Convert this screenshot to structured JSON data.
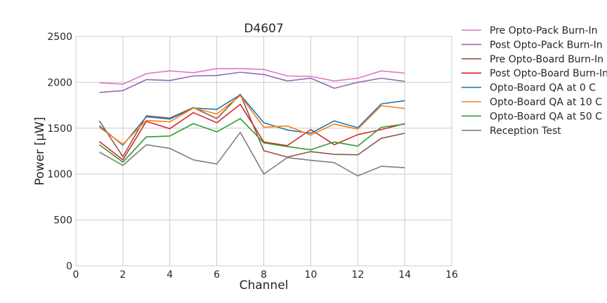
{
  "chart_data": {
    "type": "line",
    "title": "D4607",
    "xlabel": "Channel",
    "ylabel": "Power [μW]",
    "xlim": [
      0,
      16
    ],
    "ylim": [
      0,
      2500
    ],
    "xticks": [
      "0",
      "2",
      "4",
      "6",
      "8",
      "10",
      "12",
      "14",
      "16"
    ],
    "yticks": [
      "0",
      "500",
      "1000",
      "1500",
      "2000",
      "2500"
    ],
    "grid": true,
    "legend_position": "outside-right",
    "x": [
      1,
      2,
      3,
      4,
      5,
      6,
      7,
      8,
      9,
      10,
      11,
      12,
      13,
      14
    ],
    "series": [
      {
        "name": "Pre Opto-Pack Burn-In",
        "color": "#e377c2",
        "values": [
          1995,
          1980,
          2095,
          2125,
          2105,
          2150,
          2150,
          2140,
          2070,
          2065,
          2015,
          2045,
          2125,
          2100
        ]
      },
      {
        "name": "Post Opto-Pack Burn-In",
        "color": "#9467bd",
        "values": [
          1890,
          1910,
          2030,
          2020,
          2070,
          2075,
          2110,
          2085,
          2015,
          2045,
          1935,
          2000,
          2045,
          2010
        ]
      },
      {
        "name": "Pre Opto-Board Burn-In",
        "color": "#8c564b",
        "values": [
          1580,
          1190,
          1635,
          1610,
          1725,
          1605,
          1870,
          1255,
          1185,
          1245,
          1215,
          1210,
          1390,
          1445
        ]
      },
      {
        "name": "Post Opto-Board Burn-In",
        "color": "#d62728",
        "values": [
          1355,
          1155,
          1575,
          1495,
          1670,
          1560,
          1760,
          1350,
          1310,
          1485,
          1320,
          1430,
          1485,
          1550
        ]
      },
      {
        "name": "Opto-Board QA at 0 C",
        "color": "#1f77b4",
        "values": [
          1525,
          1315,
          1625,
          1600,
          1720,
          1705,
          1865,
          1560,
          1480,
          1445,
          1580,
          1505,
          1765,
          1800
        ]
      },
      {
        "name": "Opto-Board QA at 10 C",
        "color": "#ff7f0e",
        "values": [
          1510,
          1325,
          1585,
          1570,
          1720,
          1655,
          1855,
          1510,
          1525,
          1425,
          1545,
          1490,
          1745,
          1715
        ]
      },
      {
        "name": "Opto-Board QA at 50 C",
        "color": "#2ca02c",
        "values": [
          1320,
          1130,
          1405,
          1415,
          1550,
          1460,
          1605,
          1340,
          1300,
          1265,
          1350,
          1305,
          1510,
          1545
        ]
      },
      {
        "name": "Reception Test",
        "color": "#7f7f7f",
        "values": [
          1240,
          1095,
          1320,
          1280,
          1155,
          1110,
          1455,
          1000,
          1180,
          1150,
          1125,
          980,
          1085,
          1070
        ]
      }
    ]
  }
}
